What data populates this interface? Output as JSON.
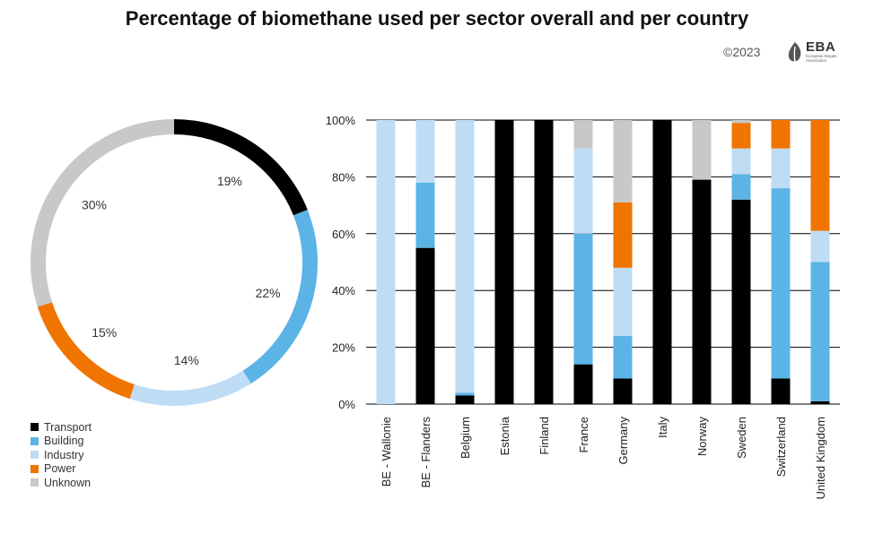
{
  "title": "Percentage of biomethane used per sector overall and per country",
  "copyright": "©2023",
  "logo": {
    "text": "EBA",
    "subtext": "European Biogas Association"
  },
  "colors": {
    "Transport": "#000000",
    "Building": "#5bb4e5",
    "Industry": "#bfdcf5",
    "Power": "#f07400",
    "Unknown": "#c8c8c8"
  },
  "legend": [
    "Transport",
    "Building",
    "Industry",
    "Power",
    "Unknown"
  ],
  "chart_data": [
    {
      "type": "pie",
      "subtype": "donut",
      "title": "",
      "labels": [
        "Transport",
        "Building",
        "Industry",
        "Power",
        "Unknown"
      ],
      "values": [
        19,
        22,
        14,
        15,
        30
      ],
      "value_labels": [
        "19%",
        "22%",
        "14%",
        "15%",
        "30%"
      ]
    },
    {
      "type": "bar",
      "stacked": true,
      "title": "",
      "xlabel": "",
      "ylabel": "",
      "ylim": [
        0,
        100
      ],
      "yticks": [
        "0%",
        "20%",
        "40%",
        "60%",
        "80%",
        "100%"
      ],
      "categories": [
        "BE - Wallonie",
        "BE - Flanders",
        "Belgium",
        "Estonia",
        "Finland",
        "France",
        "Germany",
        "Italy",
        "Norway",
        "Sweden",
        "Switzerland",
        "United Kingdom"
      ],
      "series": [
        {
          "name": "Transport",
          "values": [
            0,
            55,
            3,
            100,
            100,
            14,
            9,
            100,
            79,
            72,
            9,
            1
          ]
        },
        {
          "name": "Building",
          "values": [
            0,
            23,
            1,
            0,
            0,
            46,
            15,
            0,
            0,
            9,
            67,
            49
          ]
        },
        {
          "name": "Industry",
          "values": [
            100,
            22,
            96,
            0,
            0,
            30,
            24,
            0,
            0,
            9,
            14,
            11
          ]
        },
        {
          "name": "Power",
          "values": [
            0,
            0,
            0,
            0,
            0,
            0,
            23,
            0,
            0,
            9,
            10,
            39
          ]
        },
        {
          "name": "Unknown",
          "values": [
            0,
            0,
            0,
            0,
            0,
            10,
            29,
            0,
            21,
            1,
            0,
            0
          ]
        }
      ],
      "grid": true,
      "legend": "left"
    }
  ]
}
